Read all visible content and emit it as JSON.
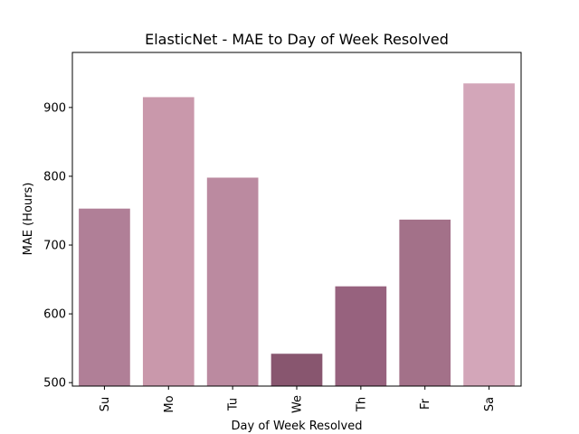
{
  "chart_data": {
    "type": "bar",
    "title": "ElasticNet - MAE to Day of Week Resolved",
    "xlabel": "Day of Week Resolved",
    "ylabel": "MAE (Hours)",
    "categories": [
      "Su",
      "Mo",
      "Tu",
      "We",
      "Th",
      "Fr",
      "Sa"
    ],
    "values": [
      753,
      915,
      798,
      542,
      640,
      737,
      935
    ],
    "colors": [
      "#b07f97",
      "#c998ab",
      "#bb8aa0",
      "#88566f",
      "#97627e",
      "#a37189",
      "#d3a6b9"
    ],
    "ylim": [
      495,
      980
    ],
    "yticks": [
      500,
      600,
      700,
      800,
      900
    ],
    "grid": false,
    "legend": "none"
  }
}
